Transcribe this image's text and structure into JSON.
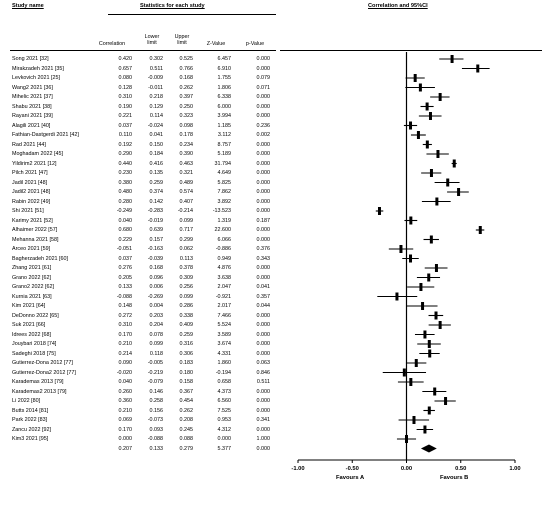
{
  "headers": {
    "study_name": "Study name",
    "stats_title": "Statistics for each study",
    "ci_title": "Correlation and 95%CI",
    "correlation": "Correlation",
    "lower_limit": "Lower limit",
    "upper_limit": "Upper limit",
    "z_value": "Z-Value",
    "p_value": "p-Value"
  },
  "chart_data": {
    "type": "forest",
    "xlim": [
      -1,
      1
    ],
    "x_ticks": [
      "-1.00",
      "-0.50",
      "0.00",
      "0.50",
      "1.00"
    ],
    "favours_left": "Favours A",
    "favours_right": "Favours B",
    "studies": [
      {
        "name": "Song 2021 [32]",
        "r": "0.420",
        "lo": "0.302",
        "hi": "0.525",
        "z": "6.457",
        "p": "0.000"
      },
      {
        "name": "Mirakzadeh 2021 [35]",
        "r": "0.657",
        "lo": "0.511",
        "hi": "0.766",
        "z": "6.910",
        "p": "0.000"
      },
      {
        "name": "Levkovich 2021 [25]",
        "r": "0.080",
        "lo": "-0.009",
        "hi": "0.168",
        "z": "1.755",
        "p": "0.079"
      },
      {
        "name": "Wang2 2021 [36]",
        "r": "0.128",
        "lo": "-0.011",
        "hi": "0.262",
        "z": "1.806",
        "p": "0.071"
      },
      {
        "name": "Mihelic 2021 [37]",
        "r": "0.310",
        "lo": "0.218",
        "hi": "0.397",
        "z": "6.338",
        "p": "0.000"
      },
      {
        "name": "Shabu 2021 [38]",
        "r": "0.190",
        "lo": "0.129",
        "hi": "0.250",
        "z": "6.000",
        "p": "0.000"
      },
      {
        "name": "Rayani 2021 [39]",
        "r": "0.221",
        "lo": "0.114",
        "hi": "0.323",
        "z": "3.994",
        "p": "0.000"
      },
      {
        "name": "Alagili 2021 [40]",
        "r": "0.037",
        "lo": "-0.024",
        "hi": "0.098",
        "z": "1.185",
        "p": "0.236"
      },
      {
        "name": "Fathian-Dastgerdi 2021 [42]",
        "r": "0.110",
        "lo": "0.041",
        "hi": "0.178",
        "z": "3.112",
        "p": "0.002"
      },
      {
        "name": "Rad 2021 [44]",
        "r": "0.192",
        "lo": "0.150",
        "hi": "0.234",
        "z": "8.757",
        "p": "0.000"
      },
      {
        "name": "Moghadam 2022 [45]",
        "r": "0.290",
        "lo": "0.184",
        "hi": "0.390",
        "z": "5.189",
        "p": "0.000"
      },
      {
        "name": "Yildirim2 2021 [12]",
        "r": "0.440",
        "lo": "0.416",
        "hi": "0.463",
        "z": "31.794",
        "p": "0.000"
      },
      {
        "name": "Pilch 2021 [47]",
        "r": "0.230",
        "lo": "0.135",
        "hi": "0.321",
        "z": "4.649",
        "p": "0.000"
      },
      {
        "name": "Jadil 2021 [48]",
        "r": "0.380",
        "lo": "0.259",
        "hi": "0.489",
        "z": "5.825",
        "p": "0.000"
      },
      {
        "name": "Jadil2 2021 [48]",
        "r": "0.480",
        "lo": "0.374",
        "hi": "0.574",
        "z": "7.862",
        "p": "0.000"
      },
      {
        "name": "Rabin 2022 [49]",
        "r": "0.280",
        "lo": "0.142",
        "hi": "0.407",
        "z": "3.892",
        "p": "0.000"
      },
      {
        "name": "Shi 2021 [51]",
        "r": "-0.249",
        "lo": "-0.283",
        "hi": "-0.214",
        "z": "-13.523",
        "p": "0.000"
      },
      {
        "name": "Karimy 2021 [52]",
        "r": "0.040",
        "lo": "-0.019",
        "hi": "0.099",
        "z": "1.319",
        "p": "0.187"
      },
      {
        "name": "Alhaimer 2022 [57]",
        "r": "0.680",
        "lo": "0.639",
        "hi": "0.717",
        "z": "22.600",
        "p": "0.000"
      },
      {
        "name": "Mehanna 2021 [58]",
        "r": "0.229",
        "lo": "0.157",
        "hi": "0.299",
        "z": "6.066",
        "p": "0.000"
      },
      {
        "name": "Arceo 2021 [59]",
        "r": "-0.051",
        "lo": "-0.163",
        "hi": "0.062",
        "z": "-0.886",
        "p": "0.376"
      },
      {
        "name": "Bagherzadeh 2021 [60]",
        "r": "0.037",
        "lo": "-0.039",
        "hi": "0.113",
        "z": "0.949",
        "p": "0.343"
      },
      {
        "name": "Zhang 2021 [61]",
        "r": "0.276",
        "lo": "0.168",
        "hi": "0.378",
        "z": "4.876",
        "p": "0.000"
      },
      {
        "name": "Grano 2022 [62]",
        "r": "0.205",
        "lo": "0.096",
        "hi": "0.309",
        "z": "3.638",
        "p": "0.000"
      },
      {
        "name": "Grano2 2022 [62]",
        "r": "0.133",
        "lo": "0.006",
        "hi": "0.256",
        "z": "2.047",
        "p": "0.041"
      },
      {
        "name": "Kurnia 2021 [63]",
        "r": "-0.088",
        "lo": "-0.269",
        "hi": "0.099",
        "z": "-0.921",
        "p": "0.357"
      },
      {
        "name": "Kim 2021 [64]",
        "r": "0.148",
        "lo": "0.004",
        "hi": "0.286",
        "z": "2.017",
        "p": "0.044"
      },
      {
        "name": "DeDonno 2022 [65]",
        "r": "0.272",
        "lo": "0.203",
        "hi": "0.338",
        "z": "7.466",
        "p": "0.000"
      },
      {
        "name": "Suk 2021 [66]",
        "r": "0.310",
        "lo": "0.204",
        "hi": "0.409",
        "z": "5.524",
        "p": "0.000"
      },
      {
        "name": "Idrees 2022 [68]",
        "r": "0.170",
        "lo": "0.078",
        "hi": "0.259",
        "z": "3.589",
        "p": "0.000"
      },
      {
        "name": "Jouybari 2018 [74]",
        "r": "0.210",
        "lo": "0.099",
        "hi": "0.316",
        "z": "3.674",
        "p": "0.000"
      },
      {
        "name": "Sadeghi 2018 [75]",
        "r": "0.214",
        "lo": "0.118",
        "hi": "0.306",
        "z": "4.331",
        "p": "0.000"
      },
      {
        "name": "Gutierrez-Dona 2012 [77]",
        "r": "0.090",
        "lo": "-0.005",
        "hi": "0.183",
        "z": "1.860",
        "p": "0.063"
      },
      {
        "name": "Gutierrez-Dona2 2012 [77]",
        "r": "-0.020",
        "lo": "-0.219",
        "hi": "0.180",
        "z": "-0.194",
        "p": "0.846"
      },
      {
        "name": "Karademas 2013 [79]",
        "r": "0.040",
        "lo": "-0.079",
        "hi": "0.158",
        "z": "0.658",
        "p": "0.511"
      },
      {
        "name": "Karademas2 2013 [79]",
        "r": "0.260",
        "lo": "0.146",
        "hi": "0.367",
        "z": "4.373",
        "p": "0.000"
      },
      {
        "name": "Li 2022 [80]",
        "r": "0.360",
        "lo": "0.258",
        "hi": "0.454",
        "z": "6.560",
        "p": "0.000"
      },
      {
        "name": "Butts 2014 [81]",
        "r": "0.210",
        "lo": "0.156",
        "hi": "0.262",
        "z": "7.525",
        "p": "0.000"
      },
      {
        "name": "Park 2022 [83]",
        "r": "0.069",
        "lo": "-0.073",
        "hi": "0.208",
        "z": "0.953",
        "p": "0.341"
      },
      {
        "name": "Zancu 2022 [92]",
        "r": "0.170",
        "lo": "0.093",
        "hi": "0.245",
        "z": "4.312",
        "p": "0.000"
      },
      {
        "name": "Kim3 2021 [95]",
        "r": "0.000",
        "lo": "-0.088",
        "hi": "0.088",
        "z": "0.000",
        "p": "1.000"
      }
    ],
    "pooled": {
      "r": "0.207",
      "lo": "0.133",
      "hi": "0.279",
      "z": "5.377",
      "p": "0.000"
    }
  }
}
